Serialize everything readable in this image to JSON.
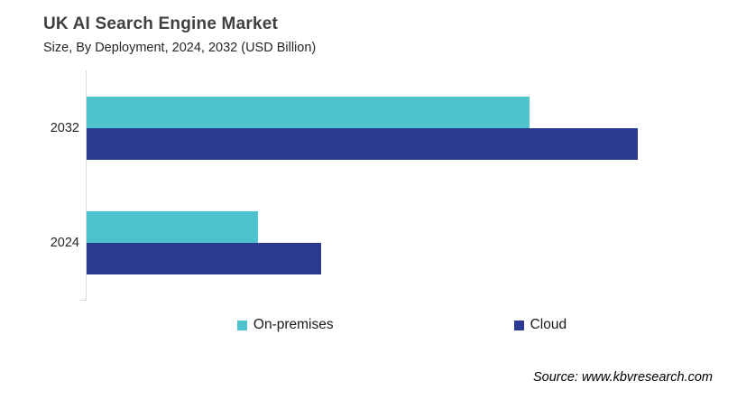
{
  "chart_data": {
    "type": "bar",
    "orientation": "horizontal",
    "title": "UK AI Search Engine Market",
    "subtitle": "Size, By Deployment, 2024, 2032 (USD Billion)",
    "categories": [
      "2032",
      "2024"
    ],
    "series": [
      {
        "name": "On-premises",
        "color": "#4EC3CD",
        "values": [
          4.9,
          1.9
        ]
      },
      {
        "name": "Cloud",
        "color": "#2B3990",
        "values": [
          6.1,
          2.6
        ]
      }
    ],
    "xlim": [
      0,
      7
    ],
    "units": "USD Billion",
    "gridlines": false,
    "value_axis_labels_visible": false,
    "legend_position": "bottom",
    "axis_color": "#D9D9D9"
  },
  "source": {
    "text": "Source: www.kbvresearch.com"
  }
}
